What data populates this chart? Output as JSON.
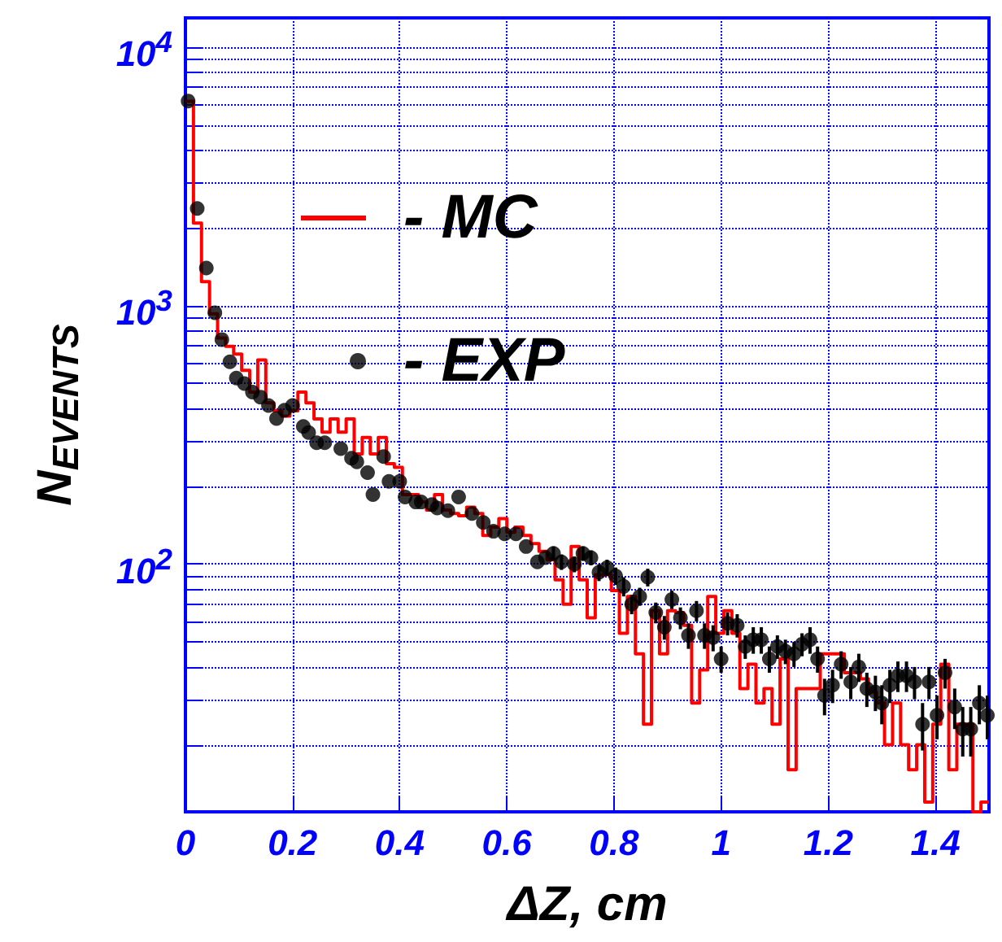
{
  "chart_data": {
    "type": "histogram",
    "xlabel": "ΔZ, cm",
    "ylabel": "N$_{EVENTS}$",
    "bins": [
      0,
      0.015,
      0.03,
      0.045,
      0.06,
      0.075,
      0.09,
      0.105,
      0.12,
      0.135,
      0.15,
      0.165,
      0.18,
      0.195,
      0.21,
      0.225,
      0.24,
      0.255,
      0.27,
      0.285,
      0.3,
      0.315,
      0.33,
      0.345,
      0.36,
      0.375,
      0.39,
      0.405,
      0.42,
      0.435,
      0.45,
      0.465,
      0.48,
      0.495,
      0.51,
      0.525,
      0.54,
      0.555,
      0.57,
      0.585,
      0.6,
      0.615,
      0.63,
      0.645,
      0.66,
      0.675,
      0.69,
      0.705,
      0.72,
      0.735,
      0.75,
      0.765,
      0.78,
      0.795,
      0.81,
      0.825,
      0.84,
      0.855,
      0.87,
      0.885,
      0.9,
      0.915,
      0.93,
      0.945,
      0.96,
      0.975,
      0.99,
      1.005,
      1.02,
      1.035,
      1.05,
      1.065,
      1.08,
      1.095,
      1.11,
      1.125,
      1.14,
      1.155,
      1.17,
      1.185,
      1.2,
      1.215,
      1.23,
      1.245,
      1.26,
      1.275,
      1.29,
      1.305,
      1.32,
      1.335,
      1.35,
      1.365,
      1.38,
      1.395,
      1.41,
      1.425,
      1.44,
      1.455,
      1.47,
      1.485,
      1.5
    ],
    "series": [
      {
        "name": "- MC",
        "type": "histogram",
        "color": "#ff0000",
        "values": [
          6180,
          2090,
          1240,
          930,
          750,
          697,
          650,
          562,
          463,
          617,
          421,
          392,
          374,
          392,
          463,
          421,
          365,
          324,
          365,
          324,
          365,
          267,
          309,
          267,
          309,
          245,
          237,
          186,
          186,
          174,
          162,
          186,
          162,
          157,
          154,
          166,
          157,
          129,
          139,
          150,
          133,
          139,
          129,
          120,
          112,
          104,
          87,
          70,
          117,
          87,
          62,
          91,
          91,
          79,
          54,
          75,
          45,
          24,
          66,
          45,
          66,
          65,
          58,
          29,
          39,
          75,
          54,
          66,
          54,
          33,
          41,
          29,
          33,
          24,
          43,
          16,
          33,
          33,
          33,
          45,
          45,
          45,
          38,
          38,
          36,
          32,
          29,
          20,
          29,
          20,
          16,
          20,
          12,
          24,
          41,
          16,
          24,
          24,
          11,
          12
        ]
      },
      {
        "name": "- EXP",
        "type": "scatter",
        "color": "#000000",
        "x": [
          0.005,
          0.022,
          0.039,
          0.055,
          0.068,
          0.083,
          0.095,
          0.11,
          0.125,
          0.14,
          0.155,
          0.17,
          0.185,
          0.2,
          0.22,
          0.23,
          0.245,
          0.26,
          0.29,
          0.31,
          0.32,
          0.34,
          0.35,
          0.37,
          0.38,
          0.4,
          0.41,
          0.43,
          0.44,
          0.46,
          0.47,
          0.49,
          0.51,
          0.535,
          0.556,
          0.575,
          0.596,
          0.617,
          0.636,
          0.657,
          0.672,
          0.687,
          0.702,
          0.726,
          0.742,
          0.757,
          0.772,
          0.787,
          0.803,
          0.818,
          0.833,
          0.848,
          0.863,
          0.878,
          0.894,
          0.908,
          0.924,
          0.939,
          0.954,
          0.969,
          0.985,
          1.0,
          1.012,
          1.03,
          1.045,
          1.06,
          1.075,
          1.09,
          1.105,
          1.12,
          1.136,
          1.151,
          1.166,
          1.18,
          1.193,
          1.208,
          1.224,
          1.242,
          1.257,
          1.272,
          1.288,
          1.3,
          1.315,
          1.33,
          1.346,
          1.361,
          1.376,
          1.388,
          1.403,
          1.418,
          1.436,
          1.451,
          1.466,
          1.482,
          1.497
        ],
        "values": [
          6200,
          2380,
          1400,
          940,
          740,
          607,
          525,
          500,
          463,
          443,
          411,
          366,
          394,
          411,
          341,
          323,
          295,
          295,
          280,
          257,
          249,
          226,
          186,
          261,
          209,
          209,
          182,
          174,
          174,
          170,
          165,
          161,
          182,
          157,
          145,
          134,
          131,
          131,
          117,
          102,
          106,
          110,
          102,
          100,
          110,
          106,
          93,
          97,
          90,
          82,
          70,
          75,
          89,
          65,
          57,
          73,
          62,
          53,
          66,
          53,
          52,
          43,
          59,
          58,
          48,
          51,
          51,
          43,
          48,
          46,
          45,
          49,
          51,
          43,
          31,
          34,
          41,
          35,
          40,
          33,
          32,
          29,
          34,
          37,
          37,
          35,
          24,
          35,
          26,
          38,
          28,
          23,
          23,
          29,
          26
        ],
        "errors": [
          null,
          null,
          null,
          null,
          null,
          null,
          null,
          null,
          null,
          null,
          null,
          null,
          null,
          null,
          null,
          null,
          null,
          null,
          null,
          null,
          null,
          null,
          null,
          null,
          null,
          null,
          null,
          null,
          null,
          null,
          null,
          null,
          null,
          null,
          null,
          null,
          null,
          null,
          null,
          null,
          null,
          7,
          7,
          7,
          7,
          7,
          7,
          7,
          7,
          7,
          6,
          6,
          7,
          6,
          6,
          6,
          6,
          6,
          6,
          6,
          6,
          5,
          6,
          6,
          5,
          6,
          6,
          5,
          5,
          5,
          5,
          5,
          6,
          5,
          5,
          5,
          5,
          5,
          5,
          5,
          5,
          5,
          5,
          5,
          5,
          5,
          5,
          5,
          5,
          5,
          5,
          5,
          5,
          5,
          5
        ]
      }
    ],
    "xlim": [
      0,
      1.5
    ],
    "xticks": [
      0,
      0.2,
      0.4,
      0.6,
      0.8,
      1,
      1.2,
      1.4
    ],
    "ylim": [
      11,
      13000
    ],
    "yticks": [
      {
        "value": 20,
        "label": null
      },
      {
        "value": 30,
        "label": null
      },
      {
        "value": 40,
        "label": null
      },
      {
        "value": 50,
        "label": null
      },
      {
        "value": 60,
        "label": null
      },
      {
        "value": 70,
        "label": null
      },
      {
        "value": 80,
        "label": null
      },
      {
        "value": 90,
        "label": null
      },
      {
        "value": 100,
        "label": "10$^{2}$"
      },
      {
        "value": 200,
        "label": null
      },
      {
        "value": 300,
        "label": null
      },
      {
        "value": 400,
        "label": null
      },
      {
        "value": 500,
        "label": null
      },
      {
        "value": 600,
        "label": null
      },
      {
        "value": 700,
        "label": null
      },
      {
        "value": 800,
        "label": null
      },
      {
        "value": 900,
        "label": null
      },
      {
        "value": 1000,
        "label": "10$^{3}$"
      },
      {
        "value": 2000,
        "label": null
      },
      {
        "value": 3000,
        "label": null
      },
      {
        "value": 4000,
        "label": null
      },
      {
        "value": 5000,
        "label": null
      },
      {
        "value": 6000,
        "label": null
      },
      {
        "value": 7000,
        "label": null
      },
      {
        "value": 8000,
        "label": null
      },
      {
        "value": 9000,
        "label": null
      },
      {
        "value": 10000,
        "label": "10$^{4}$"
      }
    ],
    "log": "y",
    "grid": true,
    "legend": "top",
    "marker": "circle",
    "line_style": "solid"
  }
}
